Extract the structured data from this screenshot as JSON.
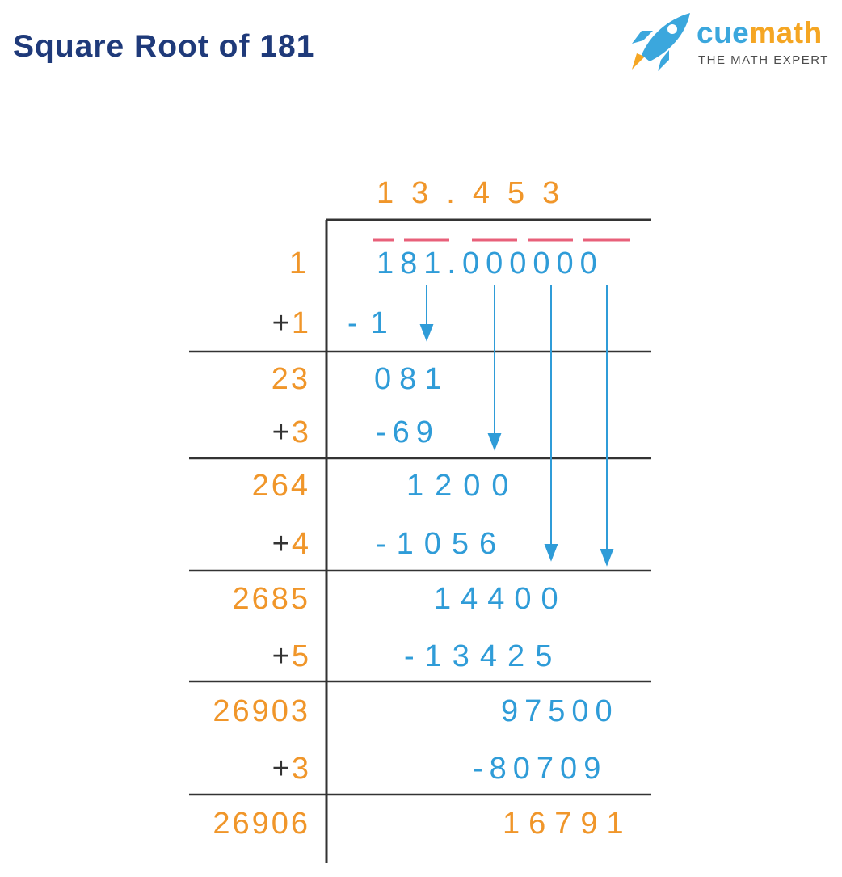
{
  "title": "Square Root of 181",
  "logo": {
    "icon": "rocket-icon",
    "name_part1": "cue",
    "name_part2": "math",
    "tagline": "THE MATH EXPERT"
  },
  "quotient": "13.453",
  "dividend": "181.000000",
  "rows": [
    {
      "divisor": "1",
      "add_sign": "+",
      "add_digit": "1",
      "subtract": "-1"
    },
    {
      "divisor": "23",
      "remainder": "081",
      "add_sign": "+",
      "add_digit": "3",
      "subtract": "-69"
    },
    {
      "divisor": "264",
      "remainder": "1200",
      "add_sign": "+",
      "add_digit": "4",
      "subtract": "-1056"
    },
    {
      "divisor": "2685",
      "remainder": "14400",
      "add_sign": "+",
      "add_digit": "5",
      "subtract": "-13425"
    },
    {
      "divisor": "26903",
      "remainder": "97500",
      "add_sign": "+",
      "add_digit": "3",
      "subtract": "-80709"
    },
    {
      "divisor": "26906",
      "remainder": "16791"
    }
  ],
  "colors": {
    "title": "#1f3a7a",
    "digits_blue": "#2f9cd8",
    "digits_orange": "#f0962a",
    "pair_bars": "#e8607a",
    "lines": "#333333"
  }
}
